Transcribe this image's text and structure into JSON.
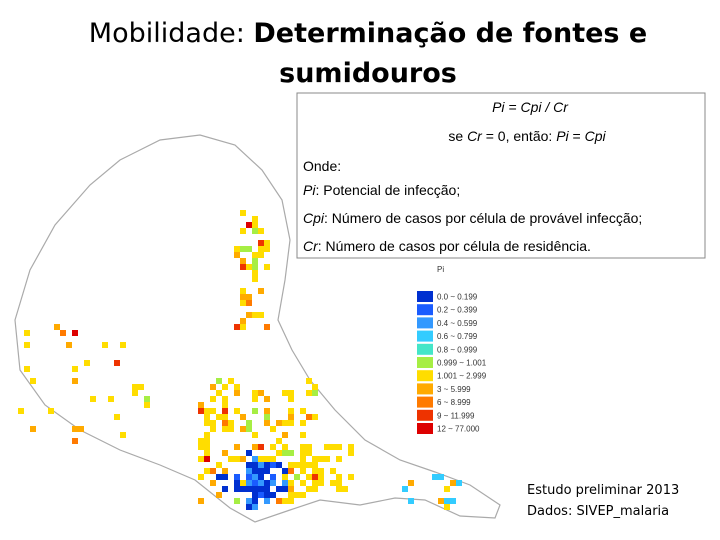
{
  "title": {
    "plain": "Mobilidade: ",
    "bold_line1": "Determinação de fontes e",
    "bold_line2": "sumidouros"
  },
  "formula_box": {
    "formula": "Pi = Cpi / Cr",
    "condition": [
      "se ",
      "Cr",
      " = 0, então: ",
      "Pi",
      " = ",
      "Cpi"
    ],
    "where": "Onde:",
    "definitions": [
      {
        "symbol": "Pi",
        "text": ":    Potencial de infecção;"
      },
      {
        "symbol": "Cpi",
        "text": ": Número de casos por célula de provável infecção;"
      },
      {
        "symbol": "Cr",
        "text": ":    Número de casos por célula de residência."
      }
    ]
  },
  "legend": {
    "title": "Pi",
    "entries": [
      {
        "label": "0.0 ~ 0.199",
        "color": "#0030d0"
      },
      {
        "label": "0.2 ~ 0.399",
        "color": "#1a5cff"
      },
      {
        "label": "0.4 ~ 0.599",
        "color": "#3399ff"
      },
      {
        "label": "0.6 ~ 0.799",
        "color": "#33ccff"
      },
      {
        "label": "0.8 ~ 0.999",
        "color": "#44e6c8"
      },
      {
        "label": "0.999 ~ 1.001",
        "color": "#a6ee44"
      },
      {
        "label": "1.001 ~ 2.999",
        "color": "#ffdd00"
      },
      {
        "label": "3 ~ 5.999",
        "color": "#ffaa00"
      },
      {
        "label": "6 ~ 8.999",
        "color": "#ff7a00"
      },
      {
        "label": "9 ~ 11.999",
        "color": "#ee3300"
      },
      {
        "label": "12 ~ 77.000",
        "color": "#dd0000"
      }
    ]
  },
  "footnote": [
    "Estudo preliminar 2013",
    "Dados: SIVEP_malaria"
  ]
}
